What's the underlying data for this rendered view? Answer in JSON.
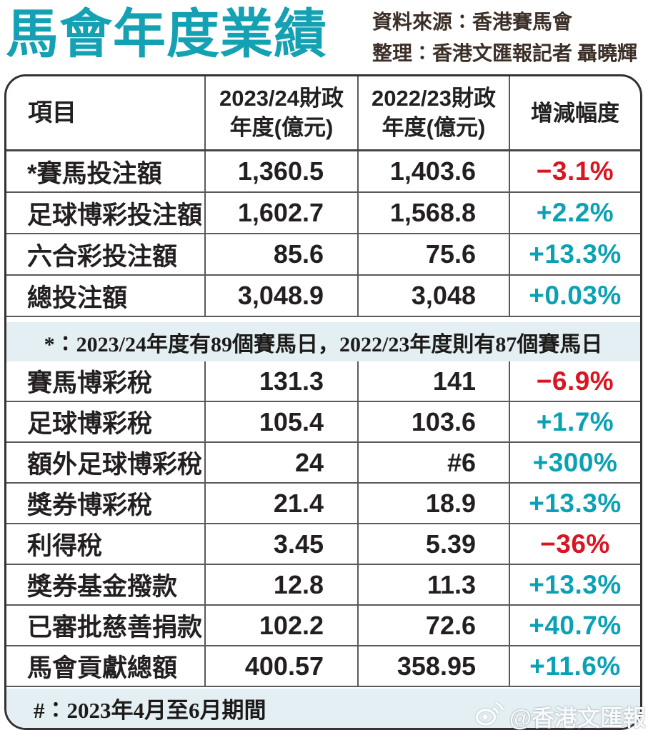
{
  "title": "馬會年度業績",
  "source": {
    "line1": "資料來源∶香港賽馬會",
    "line2": "整理∶香港文匯報記者 聶曉輝"
  },
  "colors": {
    "title_teal": "#15a1b4",
    "positive_teal": "#0ba1b4",
    "negative_red": "#da1420",
    "band_blue": "#e3eff3",
    "grid_line": "#595a5c"
  },
  "table": {
    "headers": {
      "item": "項目",
      "fy2324_line1": "2023/24財政",
      "fy2324_line2": "年度(億元)",
      "fy2223_line1": "2022/23財政",
      "fy2223_line2": "年度(億元)",
      "change": "增減幅度"
    },
    "section1": [
      {
        "label": "*賽馬投注額",
        "fy2324": "1,360.5",
        "fy2223": "1,403.6",
        "change": "−3.1%",
        "dir": "down"
      },
      {
        "label": "足球博彩投注額",
        "fy2324": "1,602.7",
        "fy2223": "1,568.8",
        "change": "+2.2%",
        "dir": "up"
      },
      {
        "label": "六合彩投注額",
        "fy2324": "85.6",
        "fy2223": "75.6",
        "change": "+13.3%",
        "dir": "up"
      },
      {
        "label": "總投注額",
        "fy2324": "3,048.9",
        "fy2223": "3,048",
        "change": "+0.03%",
        "dir": "up"
      }
    ],
    "note": "*∶2023/24年度有89個賽馬日，2022/23年度則有87個賽馬日",
    "section2": [
      {
        "label": "賽馬博彩稅",
        "fy2324": "131.3",
        "fy2223": "141",
        "change": "−6.9%",
        "dir": "down"
      },
      {
        "label": "足球博彩稅",
        "fy2324": "105.4",
        "fy2223": "103.6",
        "change": "+1.7%",
        "dir": "up"
      },
      {
        "label": "額外足球博彩稅",
        "fy2324": "24",
        "fy2223": "#6",
        "change": "+300%",
        "dir": "up"
      },
      {
        "label": "獎券博彩稅",
        "fy2324": "21.4",
        "fy2223": "18.9",
        "change": "+13.3%",
        "dir": "up"
      },
      {
        "label": "利得稅",
        "fy2324": "3.45",
        "fy2223": "5.39",
        "change": "−36%",
        "dir": "down"
      },
      {
        "label": "獎券基金撥款",
        "fy2324": "12.8",
        "fy2223": "11.3",
        "change": "+13.3%",
        "dir": "up"
      },
      {
        "label": "已審批慈善捐款",
        "fy2324": "102.2",
        "fy2223": "72.6",
        "change": "+40.7%",
        "dir": "up"
      },
      {
        "label": "馬會貢獻總額",
        "fy2324": "400.57",
        "fy2223": "358.95",
        "change": "+11.6%",
        "dir": "up"
      }
    ],
    "footnote": "#∶2023年4月至6月期間"
  },
  "watermark": "@香港文匯報",
  "chart_data": {
    "type": "table",
    "title": "馬會年度業績",
    "columns": [
      "項目",
      "2023/24財政年度(億元)",
      "2022/23財政年度(億元)",
      "增減幅度"
    ],
    "rows": [
      [
        "*賽馬投注額",
        1360.5,
        1403.6,
        "−3.1%"
      ],
      [
        "足球博彩投注額",
        1602.7,
        1568.8,
        "+2.2%"
      ],
      [
        "六合彩投注額",
        85.6,
        75.6,
        "+13.3%"
      ],
      [
        "總投注額",
        3048.9,
        3048,
        "+0.03%"
      ],
      [
        "賽馬博彩稅",
        131.3,
        141,
        "−6.9%"
      ],
      [
        "足球博彩稅",
        105.4,
        103.6,
        "+1.7%"
      ],
      [
        "額外足球博彩稅",
        24,
        "#6",
        "+300%"
      ],
      [
        "獎券博彩稅",
        21.4,
        18.9,
        "+13.3%"
      ],
      [
        "利得稅",
        3.45,
        5.39,
        "−36%"
      ],
      [
        "獎券基金撥款",
        12.8,
        11.3,
        "+13.3%"
      ],
      [
        "已審批慈善捐款",
        102.2,
        72.6,
        "+40.7%"
      ],
      [
        "馬會貢獻總額",
        400.57,
        358.95,
        "+11.6%"
      ]
    ],
    "notes": [
      "*∶2023/24年度有89個賽馬日，2022/23年度則有87個賽馬日",
      "#∶2023年4月至6月期間"
    ],
    "source": "資料來源∶香港賽馬會"
  }
}
